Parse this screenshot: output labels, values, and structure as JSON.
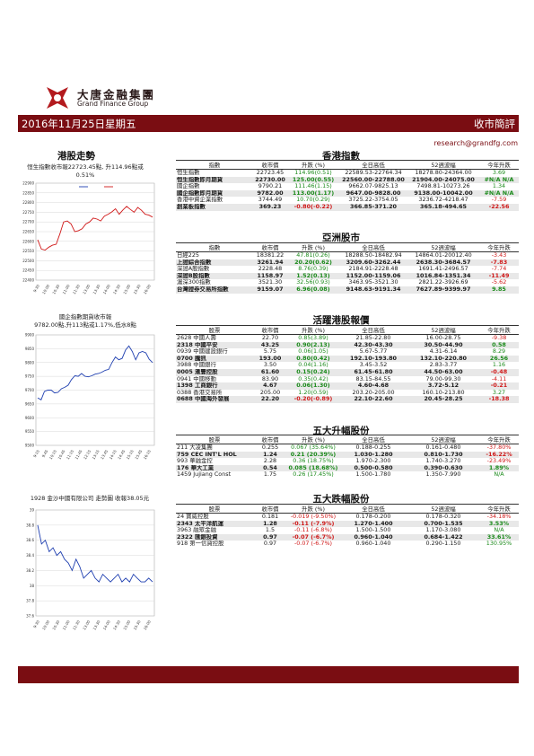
{
  "brand": {
    "name_cn": "大唐金融集團",
    "name_en": "Grand Finance Group"
  },
  "header": {
    "date": "2016年11月25日星期五",
    "title": "收市簡評",
    "email": "research@grandfg.com"
  },
  "left": {
    "section_title": "港股走勢",
    "chart1_caption": "恒生指數收市報22723.45點, 升114.96點或0.51%",
    "chart2_caption_l1": "國企指數期貨收市報",
    "chart2_caption_l2": "9782.00點,升113點或1.17%,低水8點",
    "chart3_caption": "1928 金沙中國有限公司 走勢圖  收報38.05元"
  },
  "chart_data": [
    {
      "type": "line",
      "ylim": [
        22400,
        22900
      ],
      "yticks": [
        "22400",
        "22450",
        "22500",
        "22550",
        "22600",
        "22650",
        "22700",
        "22750",
        "22800",
        "22850",
        "22900"
      ],
      "xticks": [
        "9:30",
        "10:00",
        "10:30",
        "11:00",
        "11:30",
        "13:00",
        "13:30",
        "14:00",
        "14:30",
        "15:00",
        "15:30",
        "16:00"
      ],
      "series": [
        {
          "values": [
            22608,
            22560,
            22555,
            22570,
            22580,
            22585,
            22640,
            22700,
            22705,
            22690,
            22650,
            22655,
            22665,
            22690,
            22700,
            22720,
            22715,
            22705,
            22730,
            22740,
            22752,
            22768,
            22740,
            22762,
            22780,
            22765,
            22750,
            22775,
            22760,
            22740,
            22735,
            22725
          ]
        }
      ],
      "legend": [
        "blue",
        "red"
      ]
    },
    {
      "type": "line",
      "ylim": [
        9500,
        9900
      ],
      "yticks": [
        "9500",
        "9550",
        "9600",
        "9650",
        "9700",
        "9750",
        "9800",
        "9850",
        "9900"
      ],
      "xticks": [
        "9:15",
        "9:45",
        "10:15",
        "10:45",
        "11:15",
        "11:45",
        "12:15",
        "13:15",
        "13:45",
        "14:15",
        "14:45",
        "15:15",
        "15:45",
        "16:15"
      ],
      "series": [
        {
          "values": [
            9672,
            9665,
            9695,
            9700,
            9700,
            9690,
            9692,
            9705,
            9710,
            9718,
            9738,
            9752,
            9750,
            9760,
            9750,
            9748,
            9752,
            9758,
            9760,
            9765,
            9772,
            9775,
            9800,
            9820,
            9810,
            9815,
            9845,
            9860,
            9840,
            9810,
            9835,
            9840,
            9835,
            9812,
            9800
          ]
        }
      ]
    },
    {
      "type": "line",
      "ylim": [
        37.6,
        39
      ],
      "yticks": [
        "37.6",
        "37.8",
        "38",
        "38.2",
        "38.4",
        "38.6",
        "38.8",
        "39"
      ],
      "xticks": [
        "9:30",
        "10:00",
        "10:30",
        "11:00",
        "11:30",
        "13:00",
        "13:30",
        "14:00",
        "14:30",
        "15:00",
        "15:30",
        "16:00"
      ],
      "series": [
        {
          "values": [
            38.8,
            38.55,
            38.6,
            38.45,
            38.5,
            38.4,
            38.45,
            38.35,
            38.3,
            38.2,
            38.35,
            38.25,
            38.1,
            38.15,
            38.2,
            38.1,
            38.05,
            38.15,
            38.1,
            38.05,
            38.1,
            38.15,
            38.05,
            38.1,
            38.05,
            38.15,
            38.1,
            38.05,
            38.05,
            38.1,
            38.05
          ]
        }
      ]
    }
  ],
  "hk_index": {
    "title": "香港指數",
    "headers": [
      "指數",
      "收市價",
      "升跌 (%)",
      "全日高低",
      "52週波幅",
      "今年升跌"
    ],
    "rows": [
      {
        "name": "恒生指數",
        "close": "22723.45",
        "chg": "114.96(0.51)",
        "dir": "up",
        "range": "22589.53-22764.34",
        "w52": "18278.80-24364.00",
        "ytd": "3.69",
        "ydir": "up",
        "shade": false,
        "bold": false
      },
      {
        "name": "恒生指數即月期貨",
        "close": "22730.00",
        "chg": "125.00(0.55)",
        "dir": "up",
        "range": "22560.00-22788.00",
        "w52": "21904.00-24075.00",
        "ytd": "#N/A N/A",
        "ydir": "up",
        "shade": true,
        "bold": true
      },
      {
        "name": "國企指數",
        "close": "9790.21",
        "chg": "111.46(1.15)",
        "dir": "up",
        "range": "9662.07-9825.13",
        "w52": "7498.81-10273.26",
        "ytd": "1.34",
        "ydir": "up",
        "shade": false,
        "bold": false
      },
      {
        "name": "國企指數即月期貨",
        "close": "9782.00",
        "chg": "113.00(1.17)",
        "dir": "up",
        "range": "9647.00-9828.00",
        "w52": "9138.00-10042.00",
        "ytd": "#N/A N/A",
        "ydir": "up",
        "shade": true,
        "bold": true
      },
      {
        "name": "香港中資企業指數",
        "close": "3744.49",
        "chg": "10.70(0.29)",
        "dir": "up",
        "range": "3725.22-3754.05",
        "w52": "3236.72-4218.47",
        "ytd": "-7.59",
        "ydir": "dn",
        "shade": false,
        "bold": false
      },
      {
        "name": "創業板指數",
        "close": "369.23",
        "chg": "-0.80(-0.22)",
        "dir": "dn",
        "range": "366.85-371.20",
        "w52": "365.18-494.65",
        "ytd": "-22.56",
        "ydir": "dn",
        "shade": true,
        "bold": true
      }
    ]
  },
  "asia": {
    "title": "亞洲股市",
    "headers": [
      "指數",
      "收市價",
      "升跌 (%)",
      "全日高低",
      "52週波幅",
      "今年升跌"
    ],
    "rows": [
      {
        "name": "日經225",
        "close": "18381.22",
        "chg": "47.81(0.26)",
        "dir": "up",
        "range": "18288.50-18482.94",
        "w52": "14864.01-20012.40",
        "ytd": "-3.43",
        "ydir": "dn",
        "shade": false,
        "bold": false
      },
      {
        "name": "上證綜合指數",
        "close": "3261.94",
        "chg": "20.20(0.62)",
        "dir": "up",
        "range": "3209.60-3262.44",
        "w52": "2638.30-3684.57",
        "ytd": "-7.83",
        "ydir": "dn",
        "shade": true,
        "bold": true
      },
      {
        "name": "深證A股指數",
        "close": "2228.48",
        "chg": "8.76(0.39)",
        "dir": "up",
        "range": "2184.91-2228.48",
        "w52": "1691.41-2496.57",
        "ytd": "-7.74",
        "ydir": "dn",
        "shade": false,
        "bold": false
      },
      {
        "name": "深證B股指數",
        "close": "1158.97",
        "chg": "1.52(0.13)",
        "dir": "up",
        "range": "1152.00-1159.06",
        "w52": "1016.84-1351.34",
        "ytd": "-11.49",
        "ydir": "dn",
        "shade": true,
        "bold": true
      },
      {
        "name": "滬深300指數",
        "close": "3521.30",
        "chg": "32.56(0.93)",
        "dir": "up",
        "range": "3463.95-3521.30",
        "w52": "2821.22-3926.69",
        "ytd": "-5.62",
        "ydir": "dn",
        "shade": false,
        "bold": false
      },
      {
        "name": "台灣證券交易所指數",
        "close": "9159.07",
        "chg": "6.96(0.08)",
        "dir": "up",
        "range": "9148.63-9191.34",
        "w52": "7627.89-9399.97",
        "ytd": "9.85",
        "ydir": "up",
        "shade": true,
        "bold": true
      }
    ]
  },
  "active": {
    "title": "活躍港股報價",
    "headers": [
      "股票",
      "收市價",
      "升跌 (%)",
      "全日高低",
      "52週波幅",
      "今年升跌"
    ],
    "rows": [
      {
        "name": "2628  中國人壽",
        "close": "22.70",
        "chg": "0.85(3.89)",
        "dir": "up",
        "range": "21.85-22.80",
        "w52": "16.00-28.75",
        "ytd": "-9.38",
        "ydir": "dn",
        "shade": false,
        "bold": false
      },
      {
        "name": "2318  中國平安",
        "close": "43.25",
        "chg": "0.90(2.13)",
        "dir": "up",
        "range": "42.30-43.30",
        "w52": "30.50-44.90",
        "ytd": "0.58",
        "ydir": "up",
        "shade": true,
        "bold": true
      },
      {
        "name": "0939  中國建設銀行",
        "close": "5.75",
        "chg": "0.06(1.05)",
        "dir": "up",
        "range": "5.67-5.77",
        "w52": "4.31-6.14",
        "ytd": "8.29",
        "ydir": "up",
        "shade": false,
        "bold": false
      },
      {
        "name": "0700  騰訊",
        "close": "193.00",
        "chg": "0.80(0.42)",
        "dir": "up",
        "range": "192.10-193.80",
        "w52": "132.10-220.80",
        "ytd": "26.56",
        "ydir": "up",
        "shade": true,
        "bold": true
      },
      {
        "name": "3988  中國銀行",
        "close": "3.50",
        "chg": "0.04(1.16)",
        "dir": "up",
        "range": "3.45-3.52",
        "w52": "2.83-3.77",
        "ytd": "1.16",
        "ydir": "up",
        "shade": false,
        "bold": false
      },
      {
        "name": "0005  滙豐控股",
        "close": "61.60",
        "chg": "0.15(0.24)",
        "dir": "up",
        "range": "61.45-61.80",
        "w52": "44.50-63.00",
        "ytd": "-0.48",
        "ydir": "dn",
        "shade": true,
        "bold": true
      },
      {
        "name": "0941  中國移動",
        "close": "83.90",
        "chg": "0.35(0.42)",
        "dir": "up",
        "range": "83.15-84.55",
        "w52": "79.00-99.30",
        "ytd": "-4.11",
        "ydir": "dn",
        "shade": false,
        "bold": false
      },
      {
        "name": "1398  工商銀行",
        "close": "4.67",
        "chg": "0.06(1.30)",
        "dir": "up",
        "range": "4.60-4.68",
        "w52": "3.72-5.12",
        "ytd": "-0.21",
        "ydir": "dn",
        "shade": true,
        "bold": true
      },
      {
        "name": "0388  香港交易所",
        "close": "205.00",
        "chg": "1.20(0.59)",
        "dir": "up",
        "range": "203.20-205.00",
        "w52": "160.10-213.80",
        "ytd": "3.27",
        "ydir": "up",
        "shade": false,
        "bold": false
      },
      {
        "name": "0688  中國海外發展",
        "close": "22.20",
        "chg": "-0.20(-0.89)",
        "dir": "dn",
        "range": "22.10-22.60",
        "w52": "20.45-28.25",
        "ytd": "-18.38",
        "ydir": "dn",
        "shade": true,
        "bold": true
      }
    ]
  },
  "gainers": {
    "title": "五大升幅股份",
    "headers": [
      "股票",
      "收市價",
      "升跌 (%)",
      "全日高低",
      "52週波幅",
      "今年升跌"
    ],
    "rows": [
      {
        "name": "211 大凌集團",
        "close": "0.255",
        "chg": "0.067 (35.64%)",
        "dir": "up",
        "range": "0.188-0.255",
        "w52": "0.161-0.480",
        "ytd": "-37.80%",
        "ydir": "dn",
        "shade": false,
        "bold": false
      },
      {
        "name": "759 CEC INT'L HOL",
        "close": "1.24",
        "chg": "0.21 (20.39%)",
        "dir": "up",
        "range": "1.030-1.280",
        "w52": "0.810-1.730",
        "ytd": "-16.22%",
        "ydir": "dn",
        "shade": true,
        "bold": true
      },
      {
        "name": "993 華融金控",
        "close": "2.28",
        "chg": "0.36 (18.75%)",
        "dir": "up",
        "range": "1.970-2.300",
        "w52": "1.740-3.270",
        "ytd": "-23.49%",
        "ydir": "dn",
        "shade": false,
        "bold": false
      },
      {
        "name": "176 華大工業",
        "close": "0.54",
        "chg": "0.085 (18.68%)",
        "dir": "up",
        "range": "0.500-0.580",
        "w52": "0.390-0.630",
        "ytd": "1.89%",
        "ydir": "up",
        "shade": true,
        "bold": true
      },
      {
        "name": "1459 Jujiang Const",
        "close": "1.75",
        "chg": "0.26 (17.45%)",
        "dir": "up",
        "range": "1.500-1.780",
        "w52": "1.350-7.990",
        "ytd": "N/A",
        "ydir": "up",
        "shade": false,
        "bold": false
      }
    ]
  },
  "losers": {
    "title": "五大跌幅股份",
    "headers": [
      "股票",
      "收市價",
      "升跌 (%)",
      "全日高低",
      "52週波幅",
      "今年升跌"
    ],
    "rows": [
      {
        "name": "24 寶威控股",
        "close": "0.181",
        "chg": "-0.019 (-9.50%)",
        "dir": "dn",
        "range": "0.178-0.200",
        "w52": "0.178-0.320",
        "ytd": "-34.18%",
        "ydir": "dn",
        "shade": false,
        "bold": false
      },
      {
        "name": "2343 太平洋航運",
        "close": "1.28",
        "chg": "-0.11 (-7.9%)",
        "dir": "dn",
        "range": "1.270-1.400",
        "w52": "0.700-1.535",
        "ytd": "3.53%",
        "ydir": "up",
        "shade": true,
        "bold": true
      },
      {
        "name": "3963 融眾金融",
        "close": "1.5",
        "chg": "-0.11 (-6.8%)",
        "dir": "dn",
        "range": "1.500-1.500",
        "w52": "1.170-3.080",
        "ytd": "N/A",
        "ydir": "up",
        "shade": false,
        "bold": false
      },
      {
        "name": "2322 匯銀投資",
        "close": "0.97",
        "chg": "-0.07 (-6.7%)",
        "dir": "dn",
        "range": "0.960-1.040",
        "w52": "0.684-1.422",
        "ytd": "33.61%",
        "ydir": "up",
        "shade": true,
        "bold": true
      },
      {
        "name": "918 第一信貸控股",
        "close": "0.97",
        "chg": "-0.07 (-6.7%)",
        "dir": "dn",
        "range": "0.960-1.040",
        "w52": "0.290-1.150",
        "ytd": "130.95%",
        "ydir": "up",
        "shade": false,
        "bold": false
      }
    ]
  }
}
